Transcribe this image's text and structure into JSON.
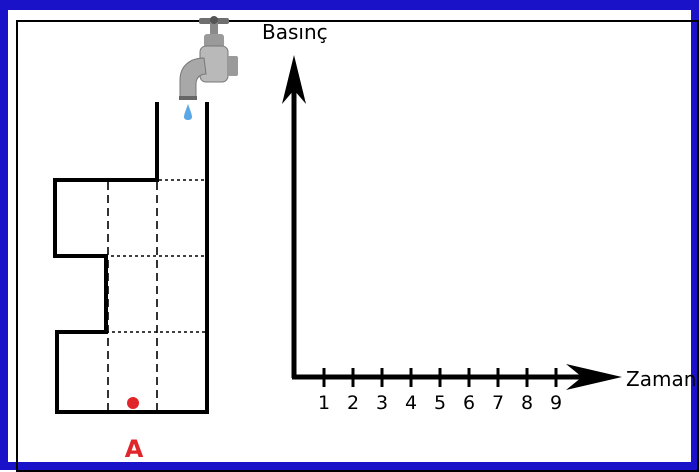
{
  "graph": {
    "y_label": "Basınç",
    "x_label": "Zaman",
    "ticks": [
      "1",
      "2",
      "3",
      "4",
      "5",
      "6",
      "7",
      "8",
      "9"
    ]
  },
  "container": {
    "point_label": "A"
  },
  "colors": {
    "frame": "#1a12c8",
    "point": "#e0262b",
    "water_drop": "#5aa9e6"
  }
}
